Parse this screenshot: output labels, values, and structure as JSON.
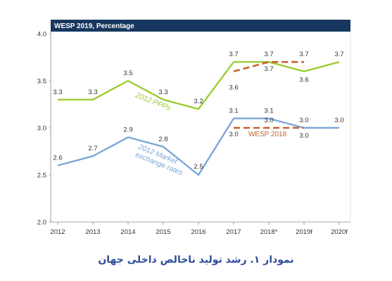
{
  "header_title": "WESP 2019, Percentage",
  "caption": "نمودار ۱. رشد تولید ناخالص داخلی جهان",
  "colors": {
    "header_bg": "#17375e",
    "ppp": "#9acd32",
    "market": "#7ba7d9",
    "wesp2018": "#c8602a",
    "axis": "#888888"
  },
  "chart_data": {
    "type": "line",
    "categories": [
      "2012",
      "2013",
      "2014",
      "2015",
      "2016",
      "2017",
      "2018*",
      "2019f",
      "2020f"
    ],
    "ylim": [
      2.0,
      4.0
    ],
    "y_ticks": [
      "2.0",
      "2.5",
      "3.0",
      "3.5",
      "4.0"
    ],
    "grid": false,
    "series": [
      {
        "name": "2012 PPPs",
        "values": [
          3.3,
          3.3,
          3.5,
          3.3,
          3.2,
          3.7,
          3.7,
          3.6,
          3.7
        ],
        "labels": [
          "3.3",
          "3.3",
          "3.5",
          "3.3",
          "3.2",
          "3.7",
          "3.7",
          "3.6",
          "3.7"
        ]
      },
      {
        "name": "2012 Market exchange rates",
        "name_lines": [
          "2012 Market",
          "exchange rates"
        ],
        "values": [
          2.6,
          2.7,
          2.9,
          2.8,
          2.5,
          3.1,
          3.1,
          3.0,
          3.0
        ],
        "labels": [
          "2.6",
          "2.7",
          "2.9",
          "2.8",
          "2.5",
          "3.1",
          "3.1",
          "3.0",
          "3.0"
        ]
      }
    ],
    "wesp2018": {
      "name": "WESP 2018",
      "ppp": {
        "x_start": 5,
        "values": [
          3.6,
          3.7,
          3.7
        ],
        "labels": [
          "3.6",
          "3.7",
          "3.7"
        ]
      },
      "market": {
        "x_start": 5,
        "values": [
          3.0,
          3.0,
          3.0
        ],
        "labels": [
          "3.0",
          "3.0",
          "3.0"
        ]
      }
    }
  }
}
